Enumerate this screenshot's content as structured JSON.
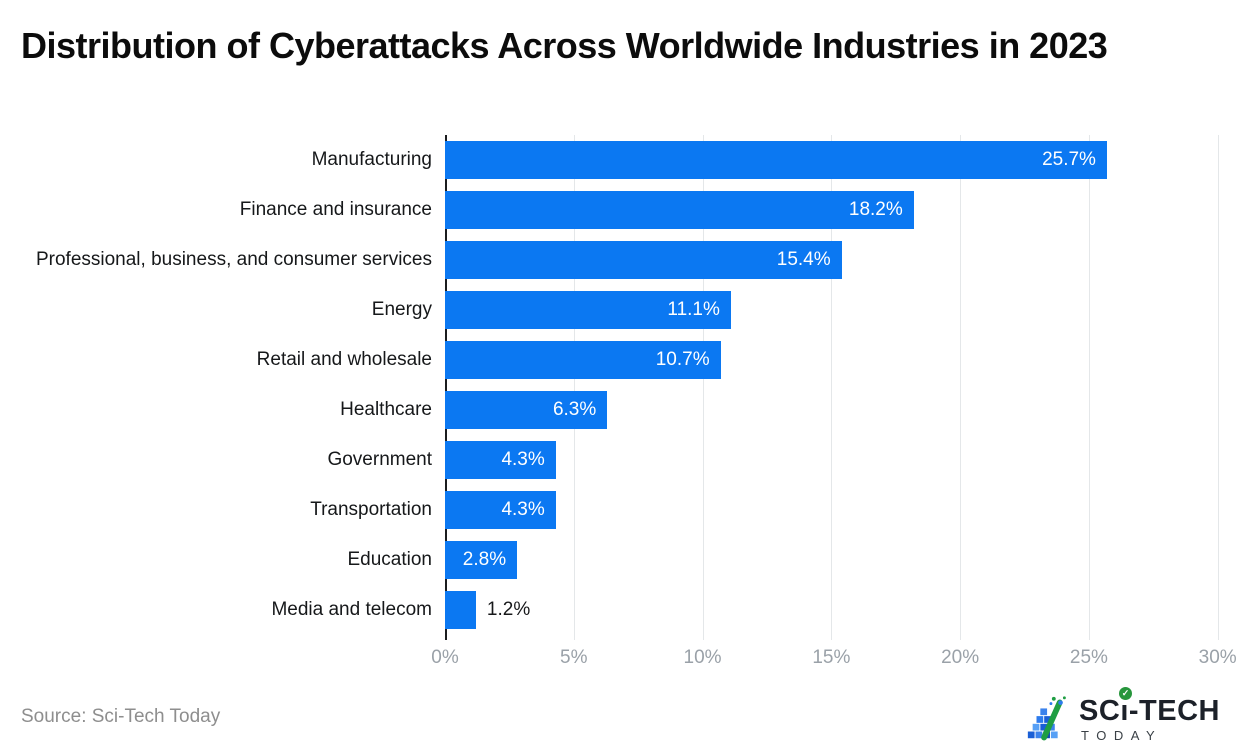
{
  "title": "Distribution of Cyberattacks Across Worldwide Industries in 2023",
  "source_text": "Source: Sci-Tech Today",
  "logo": {
    "name_prefix": "SC",
    "name_i": "ı",
    "check": "✓",
    "name_suffix": "-TECH",
    "subtitle": "TODAY"
  },
  "colors": {
    "bar": "#0b78f2",
    "grid": "#e4e7e9",
    "axis": "#1b1d1f",
    "tick_label": "#9aa1a8",
    "value_inside": "#ffffff",
    "value_outside": "#17181a",
    "logo_green": "#27963c",
    "logo_blue": "#2d7bed",
    "logo_dark_blue": "#1a5fd6"
  },
  "chart_data": {
    "type": "bar",
    "orientation": "horizontal",
    "title": "Distribution of Cyberattacks Across Worldwide Industries in 2023",
    "categories": [
      "Manufacturing",
      "Finance and insurance",
      "Professional, business, and consumer services",
      "Energy",
      "Retail and wholesale",
      "Healthcare",
      "Government",
      "Transportation",
      "Education",
      "Media and telecom"
    ],
    "values": [
      25.7,
      18.2,
      15.4,
      11.1,
      10.7,
      6.3,
      4.3,
      4.3,
      2.8,
      1.2
    ],
    "value_labels": [
      "25.7%",
      "18.2%",
      "15.4%",
      "11.1%",
      "10.7%",
      "6.3%",
      "4.3%",
      "4.3%",
      "2.8%",
      "1.2%"
    ],
    "xlabel": "",
    "ylabel": "",
    "x_ticks": [
      {
        "label": "0%",
        "value": 0
      },
      {
        "label": "5%",
        "value": 5
      },
      {
        "label": "10%",
        "value": 10
      },
      {
        "label": "15%",
        "value": 15
      },
      {
        "label": "20%",
        "value": 20
      },
      {
        "label": "25%",
        "value": 25
      },
      {
        "label": "30%",
        "value": 30
      }
    ],
    "xlim": [
      0,
      30.4
    ],
    "grid": true,
    "legend": false
  }
}
